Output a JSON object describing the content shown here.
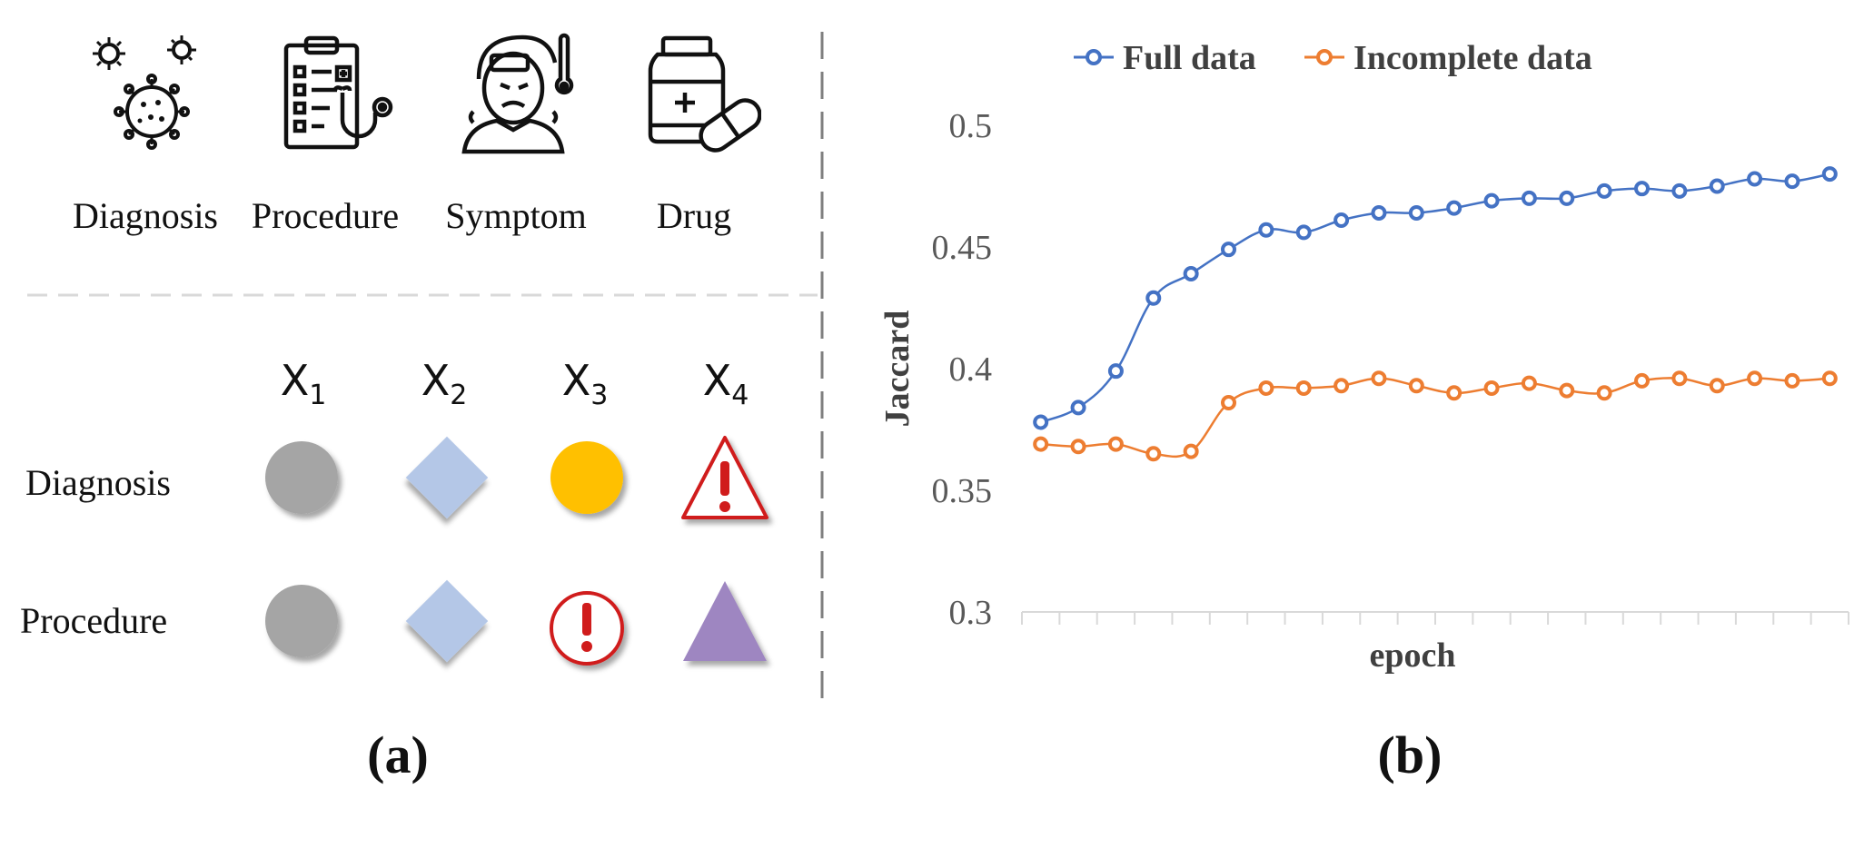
{
  "panel_a": {
    "categories": [
      {
        "label": "Diagnosis",
        "icon": "virus-icon"
      },
      {
        "label": "Procedure",
        "icon": "clipboard-stethoscope-icon"
      },
      {
        "label": "Symptom",
        "icon": "sick-person-thermometer-icon"
      },
      {
        "label": "Drug",
        "icon": "medicine-bottle-pill-icon"
      }
    ],
    "columns": [
      {
        "base": "X",
        "sub": "1"
      },
      {
        "base": "X",
        "sub": "2"
      },
      {
        "base": "X",
        "sub": "3"
      },
      {
        "base": "X",
        "sub": "4"
      }
    ],
    "rows": [
      {
        "label": "Diagnosis",
        "cells": [
          "gray-circle",
          "blue-diamond",
          "yellow-circle",
          "warning-triangle-icon"
        ]
      },
      {
        "label": "Procedure",
        "cells": [
          "gray-circle",
          "blue-diamond",
          "exclamation-circle-icon",
          "purple-triangle"
        ]
      }
    ],
    "caption": "(a)"
  },
  "panel_b": {
    "caption": "(b)"
  },
  "colors": {
    "full": "#4472C4",
    "incomplete": "#ED7D31",
    "gray_shape": "#A5A5A5",
    "diamond": "#B4C7E7",
    "yellow": "#FFC000",
    "purple": "#9E86C1",
    "warning_red": "#D01E1E"
  },
  "chart_data": {
    "type": "line",
    "xlabel": "epoch",
    "ylabel": "Jaccard",
    "ylim": [
      0.3,
      0.5
    ],
    "yticks": [
      "0.3",
      "0.35",
      "0.4",
      "0.45",
      "0.5"
    ],
    "legend_position": "top",
    "grid": false,
    "x": [
      1,
      2,
      3,
      4,
      5,
      6,
      7,
      8,
      9,
      10,
      11,
      12,
      13,
      14,
      15,
      16,
      17,
      18,
      19,
      20,
      21,
      22
    ],
    "series": [
      {
        "name": "Full data",
        "values": [
          0.378,
          0.384,
          0.399,
          0.429,
          0.439,
          0.449,
          0.457,
          0.456,
          0.461,
          0.464,
          0.464,
          0.466,
          0.469,
          0.47,
          0.47,
          0.473,
          0.474,
          0.473,
          0.475,
          0.478,
          0.477,
          0.48
        ]
      },
      {
        "name": "Incomplete data",
        "values": [
          0.369,
          0.368,
          0.369,
          0.365,
          0.366,
          0.386,
          0.392,
          0.392,
          0.393,
          0.396,
          0.393,
          0.39,
          0.392,
          0.394,
          0.391,
          0.39,
          0.395,
          0.396,
          0.393,
          0.396,
          0.395,
          0.396
        ]
      }
    ]
  }
}
